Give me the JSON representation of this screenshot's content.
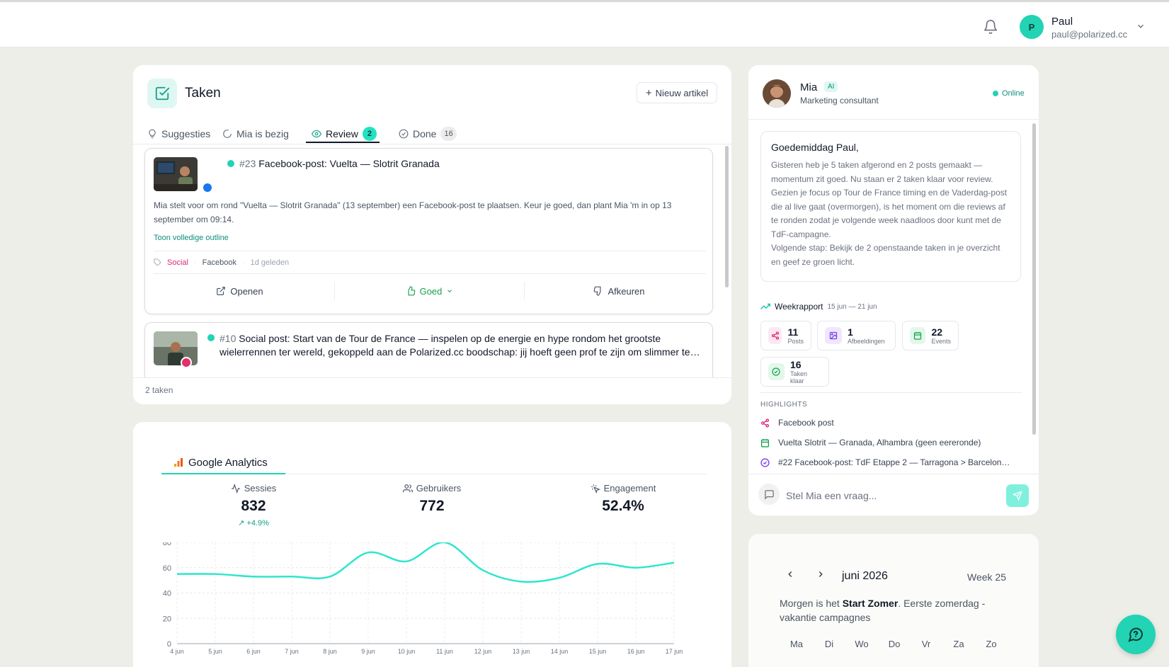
{
  "user": {
    "initial": "P",
    "name": "Paul",
    "email": "paul@polarized.cc"
  },
  "taken": {
    "title": "Taken",
    "new_button": "Nieuw artikel",
    "tabs": [
      {
        "label": "Suggesties",
        "icon": "lightbulb-icon"
      },
      {
        "label": "Mia is bezig",
        "icon": "loader-icon"
      },
      {
        "label": "Review",
        "icon": "eye-icon",
        "count": "2",
        "active": true
      },
      {
        "label": "Done",
        "icon": "check-circle-icon",
        "count": "16"
      }
    ],
    "tasks": [
      {
        "number": "#23",
        "title": "Facebook-post: Vuelta — Slotrit Granada",
        "description": "Mia stelt voor om rond \"Vuelta — Slotrit Granada\" (13 september) een Facebook-post te plaatsen. Keur je goed, dan plant Mia 'm in op 13 september om 09:14.",
        "outline_link": "Toon volledige outline",
        "tag": "Social",
        "platform": "Facebook",
        "age": "1d geleden",
        "actions": {
          "open": "Openen",
          "good": "Goed",
          "reject": "Afkeuren"
        }
      },
      {
        "number": "#10",
        "title": "Social post: Start van de Tour de France — inspelen op de energie en hype rondom het grootste wielerrennen ter wereld, gekoppeld aan de Polarized.cc boodschap: jij hoeft geen prof te zijn om slimmer te…"
      }
    ],
    "footer": "2 taken"
  },
  "analytics": {
    "tab_label": "Google Analytics",
    "metrics": [
      {
        "label": "Sessies",
        "value": "832",
        "delta": "+4.9%"
      },
      {
        "label": "Gebruikers",
        "value": "772"
      },
      {
        "label": "Engagement",
        "value": "52.4%"
      }
    ]
  },
  "chart_data": {
    "type": "line",
    "x": [
      "4 jun",
      "5 jun",
      "6 jun",
      "7 jun",
      "8 jun",
      "9 jun",
      "10 jun",
      "11 jun",
      "12 jun",
      "13 jun",
      "14 jun",
      "15 jun",
      "16 jun",
      "17 jun"
    ],
    "series": [
      {
        "values": [
          55,
          55,
          53,
          53,
          53,
          72,
          65,
          80,
          58,
          49,
          52,
          63,
          60,
          64
        ]
      }
    ],
    "ylim": [
      0,
      80
    ],
    "yticks": [
      0,
      20,
      40,
      60,
      80
    ],
    "grid": true,
    "color": "#2ee6cc"
  },
  "mia": {
    "name": "Mia",
    "ai_badge": "AI",
    "role": "Marketing consultant",
    "status": "Online",
    "greeting": "Goedemiddag Paul,",
    "paragraph1": "Gisteren heb je 5 taken afgerond en 2 posts gemaakt — momentum zit goed. Nu staan er 2 taken klaar voor review. Gezien je focus op Tour de France timing en de Vaderdag-post die al live gaat (overmorgen), is het moment om die reviews af te ronden zodat je volgende week naadloos door kunt met de TdF-campagne.",
    "paragraph2": "Volgende stap: Bekijk de 2 openstaande taken in je overzicht en geef ze groen licht.",
    "weekrapport": {
      "title": "Weekrapport",
      "range": "15 jun — 21 jun"
    },
    "stats": [
      {
        "value": "11",
        "label": "Posts",
        "icon": "share-icon",
        "color": "#db2777"
      },
      {
        "value": "1",
        "label": "Afbeeldingen",
        "icon": "image-icon",
        "color": "#7c3aed"
      },
      {
        "value": "22",
        "label": "Events",
        "icon": "calendar-icon",
        "color": "#16a34a"
      },
      {
        "value": "16",
        "label": "Taken klaar",
        "icon": "check-circle-icon",
        "color": "#16a34a"
      }
    ],
    "highlights_title": "HIGHLIGHTS",
    "highlights": [
      {
        "text": "Facebook post",
        "icon": "share-icon"
      },
      {
        "text": "Vuelta Slotrit — Granada, Alhambra (geen eereronde)",
        "icon": "calendar-icon"
      },
      {
        "text": "#22 Facebook-post: TdF Etappe 2 — Tarragona > Barcelon…",
        "icon": "check-circle-icon"
      }
    ],
    "chat_placeholder": "Stel Mia een vraag..."
  },
  "calendar": {
    "month": "juni 2026",
    "week": "Week 25",
    "note_prefix": "Morgen is het ",
    "note_bold": "Start Zomer",
    "note_suffix": ". Eerste zomerdag - vakantie campagnes",
    "weekdays": [
      "Ma",
      "Di",
      "Wo",
      "Do",
      "Vr",
      "Za",
      "Zo"
    ]
  }
}
